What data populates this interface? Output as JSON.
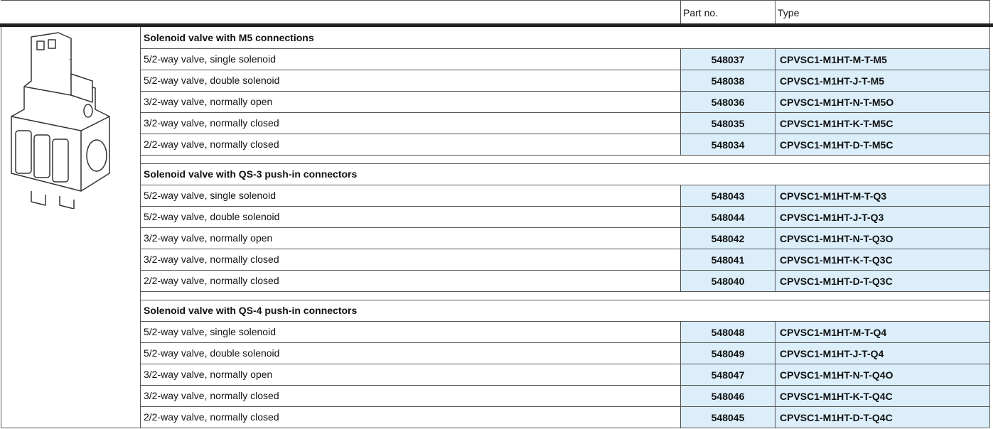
{
  "header": {
    "part_no": "Part no.",
    "type": "Type"
  },
  "sections": [
    {
      "title": "Solenoid valve with M5 connections",
      "rows": [
        {
          "description": "5/2-way valve, single solenoid",
          "part_no": "548037",
          "type": "CPVSC1-M1HT-M-T-M5"
        },
        {
          "description": "5/2-way valve, double solenoid",
          "part_no": "548038",
          "type": "CPVSC1-M1HT-J-T-M5"
        },
        {
          "description": "3/2-way valve, normally open",
          "part_no": "548036",
          "type": "CPVSC1-M1HT-N-T-M5O"
        },
        {
          "description": "3/2-way valve, normally closed",
          "part_no": "548035",
          "type": "CPVSC1-M1HT-K-T-M5C"
        },
        {
          "description": "2/2-way valve, normally closed",
          "part_no": "548034",
          "type": "CPVSC1-M1HT-D-T-M5C"
        }
      ]
    },
    {
      "title": "Solenoid valve with QS-3 push-in connectors",
      "rows": [
        {
          "description": "5/2-way valve, single solenoid",
          "part_no": "548043",
          "type": "CPVSC1-M1HT-M-T-Q3"
        },
        {
          "description": "5/2-way valve, double solenoid",
          "part_no": "548044",
          "type": "CPVSC1-M1HT-J-T-Q3"
        },
        {
          "description": "3/2-way valve, normally open",
          "part_no": "548042",
          "type": "CPVSC1-M1HT-N-T-Q3O"
        },
        {
          "description": "3/2-way valve, normally closed",
          "part_no": "548041",
          "type": "CPVSC1-M1HT-K-T-Q3C"
        },
        {
          "description": "2/2-way valve, normally closed",
          "part_no": "548040",
          "type": "CPVSC1-M1HT-D-T-Q3C"
        }
      ]
    },
    {
      "title": "Solenoid valve with QS-4 push-in connectors",
      "rows": [
        {
          "description": "5/2-way valve, single solenoid",
          "part_no": "548048",
          "type": "CPVSC1-M1HT-M-T-Q4"
        },
        {
          "description": "5/2-way valve, double solenoid",
          "part_no": "548049",
          "type": "CPVSC1-M1HT-J-T-Q4"
        },
        {
          "description": "3/2-way valve, normally open",
          "part_no": "548047",
          "type": "CPVSC1-M1HT-N-T-Q4O"
        },
        {
          "description": "3/2-way valve, normally closed",
          "part_no": "548046",
          "type": "CPVSC1-M1HT-K-T-Q4C"
        },
        {
          "description": "2/2-way valve, normally closed",
          "part_no": "548045",
          "type": "CPVSC1-M1HT-D-T-Q4C"
        }
      ]
    }
  ]
}
